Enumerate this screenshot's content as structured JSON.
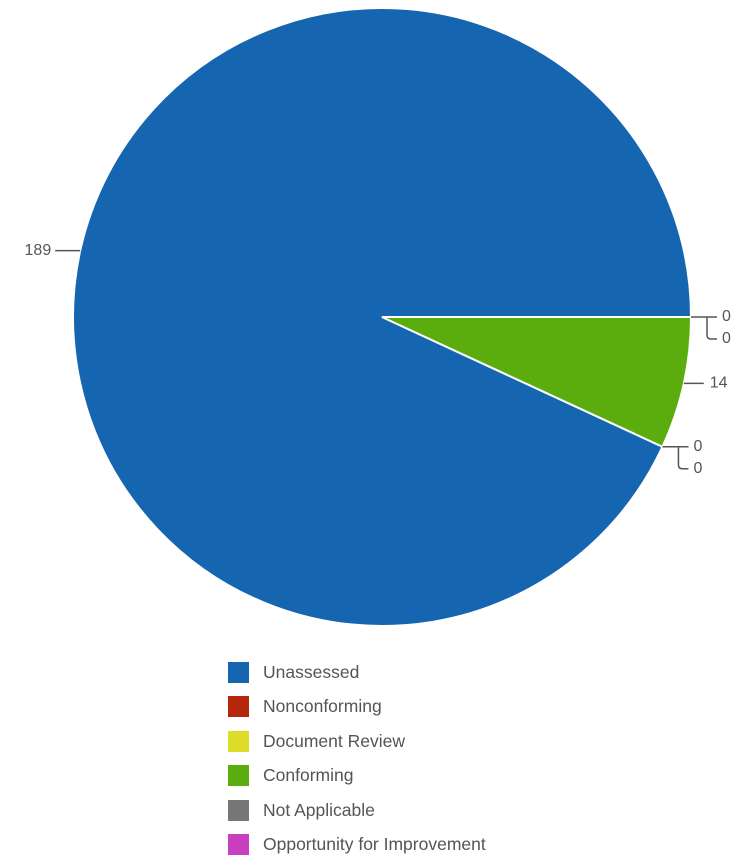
{
  "chart_data": {
    "type": "pie",
    "categories": [
      "Unassessed",
      "Nonconforming",
      "Document Review",
      "Conforming",
      "Not Applicable",
      "Opportunity for Improvement"
    ],
    "values": [
      189,
      0,
      0,
      14,
      0,
      0
    ],
    "colors": [
      "#1565b0",
      "#b5260a",
      "#dcdc29",
      "#5aad0c",
      "#777777",
      "#c840c0"
    ],
    "data_labels": [
      "189",
      "0",
      "0",
      "14",
      "0",
      "0"
    ],
    "legend": {
      "placement": "bottom",
      "items": [
        {
          "label": "Unassessed",
          "color": "#1565b0"
        },
        {
          "label": "Nonconforming",
          "color": "#b5260a"
        },
        {
          "label": "Document Review",
          "color": "#dcdc29"
        },
        {
          "label": "Conforming",
          "color": "#5aad0c"
        },
        {
          "label": "Not Applicable",
          "color": "#777777"
        },
        {
          "label": "Opportunity for Improvement",
          "color": "#c840c0"
        }
      ]
    },
    "title": "",
    "start_direction": "east",
    "slice_order": "counterclockwise"
  }
}
